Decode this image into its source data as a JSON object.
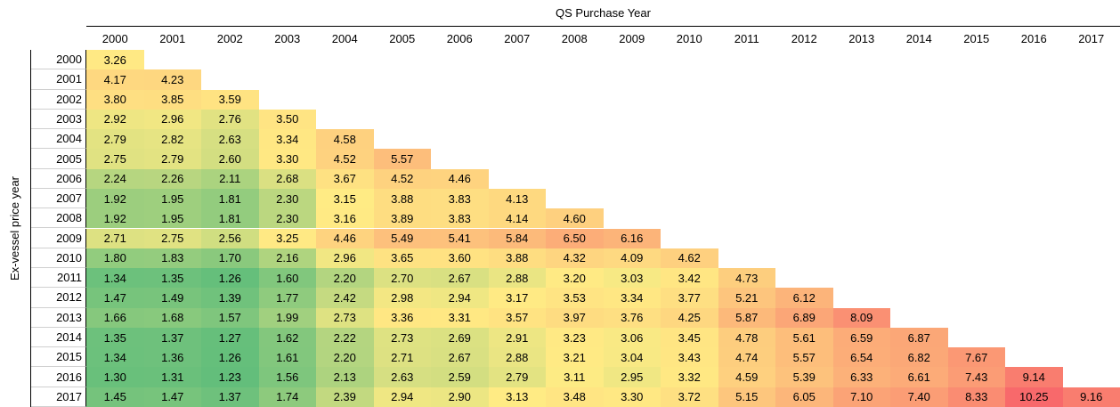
{
  "table": {
    "header": "QS Purchase Year",
    "row_axis": "Ex-vessel price year",
    "columns": [
      "2000",
      "2001",
      "2002",
      "2003",
      "2004",
      "2005",
      "2006",
      "2007",
      "2008",
      "2009",
      "2010",
      "2011",
      "2012",
      "2013",
      "2014",
      "2015",
      "2016",
      "2017"
    ],
    "rows": [
      {
        "label": "2000",
        "cells": [
          "3.26"
        ]
      },
      {
        "label": "2001",
        "cells": [
          "4.17",
          "4.23"
        ]
      },
      {
        "label": "2002",
        "cells": [
          "3.80",
          "3.85",
          "3.59"
        ]
      },
      {
        "label": "2003",
        "cells": [
          "2.92",
          "2.96",
          "2.76",
          "3.50"
        ]
      },
      {
        "label": "2004",
        "cells": [
          "2.79",
          "2.82",
          "2.63",
          "3.34",
          "4.58"
        ]
      },
      {
        "label": "2005",
        "cells": [
          "2.75",
          "2.79",
          "2.60",
          "3.30",
          "4.52",
          "5.57"
        ]
      },
      {
        "label": "2006",
        "cells": [
          "2.24",
          "2.26",
          "2.11",
          "2.68",
          "3.67",
          "4.52",
          "4.46"
        ]
      },
      {
        "label": "2007",
        "cells": [
          "1.92",
          "1.95",
          "1.81",
          "2.30",
          "3.15",
          "3.88",
          "3.83",
          "4.13"
        ]
      },
      {
        "label": "2008",
        "cells": [
          "1.92",
          "1.95",
          "1.81",
          "2.30",
          "3.16",
          "3.89",
          "3.83",
          "4.14",
          "4.60"
        ]
      },
      {
        "label": "2009",
        "cells": [
          "2.71",
          "2.75",
          "2.56",
          "3.25",
          "4.46",
          "5.49",
          "5.41",
          "5.84",
          "6.50",
          "6.16"
        ]
      },
      {
        "label": "2010",
        "cells": [
          "1.80",
          "1.83",
          "1.70",
          "2.16",
          "2.96",
          "3.65",
          "3.60",
          "3.88",
          "4.32",
          "4.09",
          "4.62"
        ]
      },
      {
        "label": "2011",
        "cells": [
          "1.34",
          "1.35",
          "1.26",
          "1.60",
          "2.20",
          "2.70",
          "2.67",
          "2.88",
          "3.20",
          "3.03",
          "3.42",
          "4.73"
        ]
      },
      {
        "label": "2012",
        "cells": [
          "1.47",
          "1.49",
          "1.39",
          "1.77",
          "2.42",
          "2.98",
          "2.94",
          "3.17",
          "3.53",
          "3.34",
          "3.77",
          "5.21",
          "6.12"
        ]
      },
      {
        "label": "2013",
        "cells": [
          "1.66",
          "1.68",
          "1.57",
          "1.99",
          "2.73",
          "3.36",
          "3.31",
          "3.57",
          "3.97",
          "3.76",
          "4.25",
          "5.87",
          "6.89",
          "8.09"
        ]
      },
      {
        "label": "2014",
        "cells": [
          "1.35",
          "1.37",
          "1.27",
          "1.62",
          "2.22",
          "2.73",
          "2.69",
          "2.91",
          "3.23",
          "3.06",
          "3.45",
          "4.78",
          "5.61",
          "6.59",
          "6.87"
        ]
      },
      {
        "label": "2015",
        "cells": [
          "1.34",
          "1.36",
          "1.26",
          "1.61",
          "2.20",
          "2.71",
          "2.67",
          "2.88",
          "3.21",
          "3.04",
          "3.43",
          "4.74",
          "5.57",
          "6.54",
          "6.82",
          "7.67"
        ]
      },
      {
        "label": "2016",
        "cells": [
          "1.30",
          "1.31",
          "1.23",
          "1.56",
          "2.13",
          "2.63",
          "2.59",
          "2.79",
          "3.11",
          "2.95",
          "3.32",
          "4.59",
          "5.39",
          "6.33",
          "6.61",
          "7.43",
          "9.14"
        ]
      },
      {
        "label": "2017",
        "cells": [
          "1.45",
          "1.47",
          "1.37",
          "1.74",
          "2.39",
          "2.94",
          "2.90",
          "3.13",
          "3.48",
          "3.30",
          "3.72",
          "5.15",
          "6.05",
          "7.10",
          "7.40",
          "8.33",
          "10.25",
          "9.16"
        ]
      }
    ]
  }
}
